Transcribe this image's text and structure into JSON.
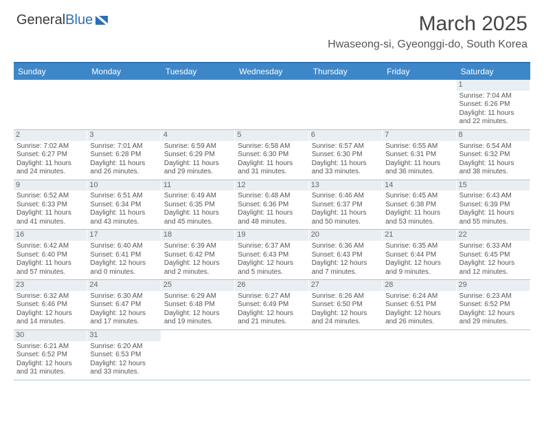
{
  "logo": {
    "text1": "General",
    "text2": "Blue"
  },
  "title": "March 2025",
  "location": "Hwaseong-si, Gyeonggi-do, South Korea",
  "colors": {
    "header_bg": "#3d87c9",
    "header_text": "#ffffff",
    "daynum_bg": "#e9eef3",
    "border": "#a8c4dd",
    "body_text": "#555555"
  },
  "dayNames": [
    "Sunday",
    "Monday",
    "Tuesday",
    "Wednesday",
    "Thursday",
    "Friday",
    "Saturday"
  ],
  "weeks": [
    [
      null,
      null,
      null,
      null,
      null,
      null,
      {
        "n": "1",
        "sr": "Sunrise: 7:04 AM",
        "ss": "Sunset: 6:26 PM",
        "dl": "Daylight: 11 hours and 22 minutes."
      }
    ],
    [
      {
        "n": "2",
        "sr": "Sunrise: 7:02 AM",
        "ss": "Sunset: 6:27 PM",
        "dl": "Daylight: 11 hours and 24 minutes."
      },
      {
        "n": "3",
        "sr": "Sunrise: 7:01 AM",
        "ss": "Sunset: 6:28 PM",
        "dl": "Daylight: 11 hours and 26 minutes."
      },
      {
        "n": "4",
        "sr": "Sunrise: 6:59 AM",
        "ss": "Sunset: 6:29 PM",
        "dl": "Daylight: 11 hours and 29 minutes."
      },
      {
        "n": "5",
        "sr": "Sunrise: 6:58 AM",
        "ss": "Sunset: 6:30 PM",
        "dl": "Daylight: 11 hours and 31 minutes."
      },
      {
        "n": "6",
        "sr": "Sunrise: 6:57 AM",
        "ss": "Sunset: 6:30 PM",
        "dl": "Daylight: 11 hours and 33 minutes."
      },
      {
        "n": "7",
        "sr": "Sunrise: 6:55 AM",
        "ss": "Sunset: 6:31 PM",
        "dl": "Daylight: 11 hours and 36 minutes."
      },
      {
        "n": "8",
        "sr": "Sunrise: 6:54 AM",
        "ss": "Sunset: 6:32 PM",
        "dl": "Daylight: 11 hours and 38 minutes."
      }
    ],
    [
      {
        "n": "9",
        "sr": "Sunrise: 6:52 AM",
        "ss": "Sunset: 6:33 PM",
        "dl": "Daylight: 11 hours and 41 minutes."
      },
      {
        "n": "10",
        "sr": "Sunrise: 6:51 AM",
        "ss": "Sunset: 6:34 PM",
        "dl": "Daylight: 11 hours and 43 minutes."
      },
      {
        "n": "11",
        "sr": "Sunrise: 6:49 AM",
        "ss": "Sunset: 6:35 PM",
        "dl": "Daylight: 11 hours and 45 minutes."
      },
      {
        "n": "12",
        "sr": "Sunrise: 6:48 AM",
        "ss": "Sunset: 6:36 PM",
        "dl": "Daylight: 11 hours and 48 minutes."
      },
      {
        "n": "13",
        "sr": "Sunrise: 6:46 AM",
        "ss": "Sunset: 6:37 PM",
        "dl": "Daylight: 11 hours and 50 minutes."
      },
      {
        "n": "14",
        "sr": "Sunrise: 6:45 AM",
        "ss": "Sunset: 6:38 PM",
        "dl": "Daylight: 11 hours and 53 minutes."
      },
      {
        "n": "15",
        "sr": "Sunrise: 6:43 AM",
        "ss": "Sunset: 6:39 PM",
        "dl": "Daylight: 11 hours and 55 minutes."
      }
    ],
    [
      {
        "n": "16",
        "sr": "Sunrise: 6:42 AM",
        "ss": "Sunset: 6:40 PM",
        "dl": "Daylight: 11 hours and 57 minutes."
      },
      {
        "n": "17",
        "sr": "Sunrise: 6:40 AM",
        "ss": "Sunset: 6:41 PM",
        "dl": "Daylight: 12 hours and 0 minutes."
      },
      {
        "n": "18",
        "sr": "Sunrise: 6:39 AM",
        "ss": "Sunset: 6:42 PM",
        "dl": "Daylight: 12 hours and 2 minutes."
      },
      {
        "n": "19",
        "sr": "Sunrise: 6:37 AM",
        "ss": "Sunset: 6:43 PM",
        "dl": "Daylight: 12 hours and 5 minutes."
      },
      {
        "n": "20",
        "sr": "Sunrise: 6:36 AM",
        "ss": "Sunset: 6:43 PM",
        "dl": "Daylight: 12 hours and 7 minutes."
      },
      {
        "n": "21",
        "sr": "Sunrise: 6:35 AM",
        "ss": "Sunset: 6:44 PM",
        "dl": "Daylight: 12 hours and 9 minutes."
      },
      {
        "n": "22",
        "sr": "Sunrise: 6:33 AM",
        "ss": "Sunset: 6:45 PM",
        "dl": "Daylight: 12 hours and 12 minutes."
      }
    ],
    [
      {
        "n": "23",
        "sr": "Sunrise: 6:32 AM",
        "ss": "Sunset: 6:46 PM",
        "dl": "Daylight: 12 hours and 14 minutes."
      },
      {
        "n": "24",
        "sr": "Sunrise: 6:30 AM",
        "ss": "Sunset: 6:47 PM",
        "dl": "Daylight: 12 hours and 17 minutes."
      },
      {
        "n": "25",
        "sr": "Sunrise: 6:29 AM",
        "ss": "Sunset: 6:48 PM",
        "dl": "Daylight: 12 hours and 19 minutes."
      },
      {
        "n": "26",
        "sr": "Sunrise: 6:27 AM",
        "ss": "Sunset: 6:49 PM",
        "dl": "Daylight: 12 hours and 21 minutes."
      },
      {
        "n": "27",
        "sr": "Sunrise: 6:26 AM",
        "ss": "Sunset: 6:50 PM",
        "dl": "Daylight: 12 hours and 24 minutes."
      },
      {
        "n": "28",
        "sr": "Sunrise: 6:24 AM",
        "ss": "Sunset: 6:51 PM",
        "dl": "Daylight: 12 hours and 26 minutes."
      },
      {
        "n": "29",
        "sr": "Sunrise: 6:23 AM",
        "ss": "Sunset: 6:52 PM",
        "dl": "Daylight: 12 hours and 29 minutes."
      }
    ],
    [
      {
        "n": "30",
        "sr": "Sunrise: 6:21 AM",
        "ss": "Sunset: 6:52 PM",
        "dl": "Daylight: 12 hours and 31 minutes."
      },
      {
        "n": "31",
        "sr": "Sunrise: 6:20 AM",
        "ss": "Sunset: 6:53 PM",
        "dl": "Daylight: 12 hours and 33 minutes."
      },
      null,
      null,
      null,
      null,
      null
    ]
  ]
}
